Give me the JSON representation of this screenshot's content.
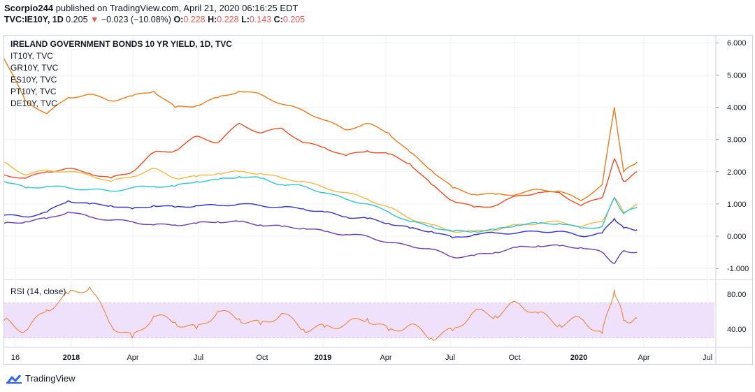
{
  "header": {
    "author": "Scorpio244",
    "published_text": " published on TradingView.com, April 21, 2020 06:16:25 EDT",
    "symbol": "TVC:IE10Y, 1D",
    "price": "0.205",
    "change_arrow": "▼",
    "change": "−0.023 (−10.08%)",
    "o_label": "O:",
    "o_value": "0.228",
    "h_label": "H:",
    "h_value": "0.228",
    "l_label": "L:",
    "l_value": "0.143",
    "c_label": "C:",
    "c_value": "0.205"
  },
  "legend": {
    "title": "IRELAND GOVERNMENT BONDS 10 YR YIELD, 1D, TVC",
    "items": [
      "IT10Y, TVC",
      "GR10Y, TVC",
      "ES10Y, TVC",
      "PT10Y, TVC",
      "DE10Y, TVC"
    ]
  },
  "rsi_label": "RSI (14, close)",
  "footer": {
    "brand": "TradingView"
  },
  "colors": {
    "ie": "#2f2fc9",
    "it": "#ef4a1d",
    "gr": "#f07a18",
    "es": "#f5b942",
    "pt": "#2ec3d4",
    "de": "#6a3cb0",
    "rsi": "#f07a2a",
    "rsi_band": "#efe1fb"
  },
  "chart_data": [
    {
      "type": "line",
      "title": "IRELAND GOVERNMENT BONDS 10 YR YIELD, 1D, TVC",
      "x_ticks": [
        "16",
        "2018",
        "Apr",
        "Jul",
        "Oct",
        "2019",
        "Apr",
        "Jul",
        "Oct",
        "2020",
        "Apr",
        "Jul"
      ],
      "y_ticks": [
        "6.000",
        "5.000",
        "4.000",
        "3.000",
        "2.000",
        "1.000",
        "0.000",
        "-1.000"
      ],
      "ylim": [
        -1.3,
        6.2
      ],
      "x": [
        "2017-11",
        "2017-12",
        "2018-01",
        "2018-02",
        "2018-03",
        "2018-04",
        "2018-05",
        "2018-06",
        "2018-07",
        "2018-08",
        "2018-09",
        "2018-10",
        "2018-11",
        "2018-12",
        "2019-01",
        "2019-02",
        "2019-03",
        "2019-04",
        "2019-05",
        "2019-06",
        "2019-07",
        "2019-08",
        "2019-09",
        "2019-10",
        "2019-11",
        "2019-12",
        "2020-01",
        "2020-02",
        "2020-03-01",
        "2020-03-18",
        "2020-04-01",
        "2020-04-20"
      ],
      "series": [
        {
          "name": "IE10Y",
          "values": [
            0.65,
            0.6,
            0.75,
            1.1,
            1.0,
            0.95,
            0.85,
            0.95,
            0.9,
            0.95,
            0.95,
            1.0,
            0.95,
            0.9,
            0.85,
            0.75,
            0.6,
            0.55,
            0.4,
            0.25,
            0.15,
            -0.05,
            0.05,
            0.1,
            0.1,
            0.15,
            0.15,
            0.0,
            0.1,
            0.55,
            0.25,
            0.2
          ]
        },
        {
          "name": "IT10Y",
          "values": [
            1.9,
            1.8,
            2.0,
            2.1,
            1.95,
            1.8,
            2.0,
            2.6,
            2.65,
            3.1,
            2.9,
            3.5,
            3.2,
            3.35,
            2.9,
            2.75,
            2.5,
            2.65,
            2.55,
            2.25,
            1.6,
            1.1,
            0.9,
            0.95,
            1.25,
            1.35,
            1.35,
            0.95,
            1.2,
            2.4,
            1.7,
            2.0
          ]
        },
        {
          "name": "GR10Y",
          "values": [
            5.5,
            4.2,
            3.8,
            4.3,
            4.4,
            4.2,
            4.35,
            4.5,
            4.0,
            4.05,
            4.3,
            4.5,
            4.4,
            4.1,
            3.9,
            3.6,
            3.3,
            3.5,
            3.2,
            2.6,
            2.05,
            1.5,
            1.3,
            1.3,
            1.3,
            1.45,
            1.4,
            1.1,
            1.6,
            4.0,
            2.0,
            2.3
          ]
        },
        {
          "name": "ES10Y",
          "values": [
            2.3,
            1.9,
            2.05,
            2.0,
            1.9,
            1.7,
            1.85,
            2.1,
            1.8,
            1.85,
            1.95,
            2.0,
            1.95,
            1.8,
            1.7,
            1.5,
            1.35,
            1.15,
            0.9,
            0.55,
            0.35,
            0.15,
            0.15,
            0.2,
            0.35,
            0.4,
            0.45,
            0.3,
            0.45,
            1.2,
            0.75,
            1.0
          ]
        },
        {
          "name": "PT10Y",
          "values": [
            1.7,
            1.5,
            1.55,
            1.5,
            1.45,
            1.4,
            1.5,
            1.55,
            1.55,
            1.7,
            1.75,
            1.85,
            1.8,
            1.6,
            1.55,
            1.35,
            1.15,
            1.0,
            0.75,
            0.45,
            0.3,
            0.15,
            0.15,
            0.2,
            0.35,
            0.4,
            0.4,
            0.25,
            0.3,
            1.2,
            0.7,
            0.9
          ]
        },
        {
          "name": "DE10Y",
          "values": [
            0.4,
            0.45,
            0.55,
            0.75,
            0.6,
            0.5,
            0.45,
            0.35,
            0.35,
            0.4,
            0.45,
            0.45,
            0.35,
            0.3,
            0.25,
            0.15,
            0.05,
            0.0,
            -0.2,
            -0.3,
            -0.4,
            -0.65,
            -0.6,
            -0.5,
            -0.35,
            -0.3,
            -0.3,
            -0.35,
            -0.5,
            -0.85,
            -0.45,
            -0.5
          ]
        }
      ]
    },
    {
      "type": "line",
      "title": "RSI (14, close)",
      "y_ticks": [
        "80.00",
        "40.00"
      ],
      "band": [
        30,
        70
      ],
      "ylim": [
        20,
        95
      ],
      "series": [
        {
          "name": "RSI",
          "values": [
            50,
            38,
            62,
            80,
            88,
            45,
            30,
            55,
            48,
            40,
            60,
            52,
            45,
            58,
            40,
            42,
            46,
            52,
            38,
            45,
            30,
            38,
            60,
            55,
            70,
            58,
            45,
            52,
            35,
            85,
            50,
            52
          ]
        }
      ]
    }
  ]
}
